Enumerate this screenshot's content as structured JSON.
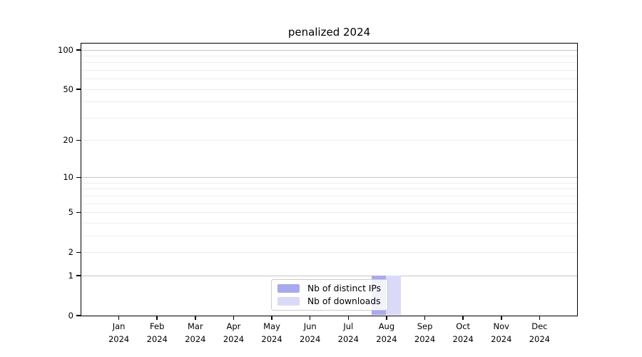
{
  "chart_data": {
    "type": "bar",
    "title": "penalized 2024",
    "categories": [
      "Jan",
      "Feb",
      "Mar",
      "Apr",
      "May",
      "Jun",
      "Jul",
      "Aug",
      "Sep",
      "Oct",
      "Nov",
      "Dec"
    ],
    "year_label": "2024",
    "series": [
      {
        "name": "Nb of distinct IPs",
        "color": "#a9a9ee",
        "values": [
          0,
          0,
          0,
          0,
          0,
          0,
          0,
          1,
          0,
          0,
          0,
          0
        ]
      },
      {
        "name": "Nb of downloads",
        "color": "#dadaf8",
        "values": [
          0,
          0,
          0,
          0,
          0,
          0,
          0,
          1,
          0,
          0,
          0,
          0
        ]
      }
    ],
    "y_scale": "log1p",
    "y_ticks": [
      0,
      1,
      2,
      5,
      10,
      20,
      50,
      100
    ],
    "y_tick_labels": [
      "0",
      "1",
      "2",
      "5",
      "10",
      "20",
      "50",
      "100"
    ],
    "y_major_gridlines": [
      1,
      10,
      100
    ],
    "y_minor_gridlines": [
      2,
      3,
      4,
      5,
      6,
      7,
      8,
      9,
      20,
      30,
      40,
      50,
      60,
      70,
      80,
      90
    ],
    "ylim": [
      0,
      113
    ],
    "xlabel": "",
    "ylabel": "",
    "grid": true,
    "legend_position": "lower center",
    "colors": {
      "major_grid": "#c4c4c4",
      "minor_grid": "#ededed",
      "spine": "#000000",
      "background": "#ffffff",
      "text": "#000000"
    }
  }
}
